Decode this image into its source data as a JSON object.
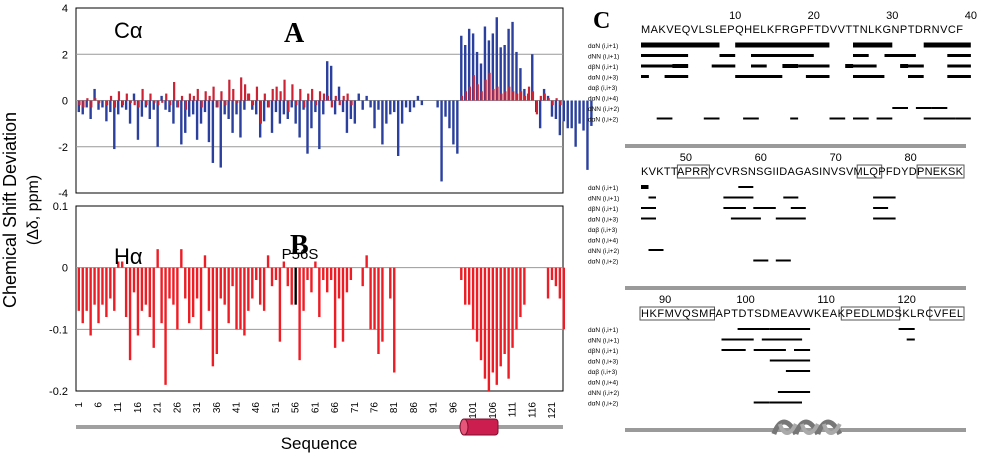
{
  "colors": {
    "calpha_pos": "#cc2233",
    "calpha_neg": "#2a3f9e",
    "halpha": "#ee1c24",
    "p56s_bar": "#000000",
    "helix": "#cc1f4f",
    "grid": "#999999"
  },
  "y_axis_label": "Chemical Shift Deviation",
  "y_axis_units": "(Δδ, ppm)",
  "x_axis_label": "Sequence",
  "x_ticks": [
    "1",
    "6",
    "11",
    "16",
    "21",
    "26",
    "31",
    "36",
    "41",
    "46",
    "51",
    "56",
    "61",
    "66",
    "71",
    "76",
    "81",
    "86",
    "91",
    "96",
    "101",
    "106",
    "111",
    "116",
    "121"
  ],
  "chart_data": [
    {
      "type": "bar",
      "panel_letter": "A",
      "title": "Cα",
      "ylim": [
        -4,
        4
      ],
      "yticks": [
        "4",
        "2",
        "0",
        "-2",
        "-4"
      ],
      "grid": true,
      "x_start": 1,
      "series": [
        {
          "values": [
            -0.5,
            -0.6,
            -0.3,
            -0.8,
            0.5,
            -0.4,
            -0.3,
            -0.9,
            -0.5,
            -2.1,
            -0.6,
            -0.3,
            -0.4,
            -1.0,
            0.3,
            -1.7,
            -0.7,
            -0.3,
            -0.8,
            -0.4,
            -2.0,
            0.2,
            -0.4,
            -0.5,
            -1.0,
            -0.3,
            -1.9,
            -1.4,
            -0.7,
            -0.6,
            -1.7,
            -1.0,
            -0.5,
            -1.8,
            -2.7,
            -0.3,
            -2.9,
            -0.6,
            -0.8,
            -1.4,
            -0.6,
            -1.6,
            -0.4,
            0.3,
            -0.4,
            -0.6,
            -1.6,
            -0.9,
            -0.3,
            -1.4,
            -0.5,
            -1.0,
            -0.6,
            -0.8,
            -0.3,
            -1.0,
            -1.6,
            -0.4,
            -2.3,
            -1.2,
            -0.5,
            -2.1,
            -0.6,
            1.7,
            1.5,
            -0.6,
            0.6,
            -0.5,
            -1.4,
            -0.8,
            -1.0,
            0.3,
            -0.4,
            0.2,
            -0.3,
            -1.2,
            -0.4,
            -1.9,
            -1.0,
            -0.6,
            -0.5,
            -2.4,
            -1.0,
            -0.3,
            -0.5,
            -0.3,
            0.2,
            -0.2,
            0,
            0,
            0,
            -0.3,
            -3.5,
            -0.7,
            -1.2,
            -1.9,
            -2.3,
            2.8,
            2.4,
            3.1,
            2.9,
            2.1,
            1.6,
            3.2,
            2.6,
            2.9,
            3.6,
            2.3,
            2.4,
            3.1,
            3.4,
            2.1,
            1.4,
            0.5,
            0.3,
            2.0,
            -0.5,
            -1.2,
            0.5,
            0.2,
            -0.7,
            -0.8,
            -1.5,
            -0.9,
            -1.2,
            -1.2,
            -2.0,
            -1.0,
            -1.3,
            -3.0,
            -1.1
          ]
        },
        {
          "values": [
            -0.2,
            -0.3,
            0.1,
            -0.3,
            0.1,
            -0.1,
            0,
            -0.2,
            0.2,
            -0.3,
            0.4,
            -0.2,
            0.3,
            -0.1,
            -0.2,
            -0.3,
            0.5,
            -0.2,
            0.3,
            -0.1,
            -0.2,
            -0.1,
            0.3,
            -0.2,
            0.8,
            -0.3,
            0.2,
            -0.4,
            0.3,
            0.2,
            0.5,
            -0.3,
            0.4,
            0.2,
            0.6,
            -0.3,
            0.4,
            -0.2,
            0.9,
            0.5,
            -0.1,
            1.0,
            0.7,
            0.3,
            -0.2,
            0.6,
            -1.0,
            0.3,
            -0.3,
            0.5,
            0.6,
            0.4,
            0.9,
            -0.5,
            0.7,
            -0.2,
            0.5,
            -0.3,
            0.3,
            0.5,
            -0.2,
            0.4,
            0.3,
            0.2,
            -0.3,
            0.2,
            -0.2,
            0.2,
            0.3,
            -0.2,
            0,
            0,
            0,
            0,
            0,
            0,
            0,
            0,
            0,
            0,
            0,
            0,
            0,
            0,
            0,
            0,
            0,
            0,
            0,
            0,
            0,
            0,
            0,
            0,
            0,
            0,
            0,
            0.2,
            0.4,
            0.6,
            1.1,
            0.7,
            0.4,
            0.9,
            1.2,
            0.5,
            0.6,
            0.3,
            0.4,
            0.6,
            0.4,
            0.3,
            0.4,
            0.2,
            0.6,
            0.4,
            -0.6,
            0.2,
            0.3,
            0.1,
            -0.2,
            0.1,
            -0.2,
            0,
            0,
            0,
            0,
            0,
            0
          ]
        }
      ]
    },
    {
      "type": "bar",
      "panel_letter": "B",
      "title": "Hα",
      "ylim": [
        -0.2,
        0.1
      ],
      "yticks": [
        "0.1",
        "0",
        "-0.1",
        "-0.2"
      ],
      "grid": true,
      "annotation": "P56S",
      "x_start": 1,
      "series": [
        {
          "values": [
            -0.07,
            -0.09,
            -0.07,
            -0.11,
            -0.06,
            -0.09,
            -0.06,
            -0.08,
            -0.05,
            -0.07,
            0.01,
            0.01,
            -0.08,
            -0.15,
            -0.04,
            -0.11,
            -0.07,
            -0.06,
            -0.08,
            -0.13,
            0.03,
            -0.09,
            -0.19,
            -0.05,
            -0.06,
            -0.1,
            0.03,
            -0.05,
            -0.09,
            -0.08,
            -0.05,
            -0.1,
            0.02,
            -0.07,
            -0.16,
            -0.14,
            -0.05,
            -0.06,
            -0.09,
            -0.03,
            -0.1,
            -0.1,
            -0.11,
            -0.07,
            -0.05,
            -0.02,
            -0.06,
            -0.07,
            0.02,
            -0.03,
            -0.02,
            -0.12,
            0.01,
            -0.03,
            -0.06,
            -0.06,
            -0.15,
            -0.07,
            -0.02,
            -0.04,
            0.01,
            -0.08,
            -0.02,
            -0.04,
            -0.02,
            -0.13,
            -0.05,
            -0.12,
            -0.04,
            -0.02,
            0.0,
            0.0,
            -0.03,
            0.02,
            -0.1,
            -0.1,
            -0.14,
            -0.12,
            0.0,
            -0.05,
            -0.17,
            0.0,
            0.0,
            0.0,
            0.0,
            0.0,
            0.0,
            0.0,
            0.0,
            0.0,
            0.0,
            0.0,
            0.0,
            0.0,
            0.0,
            0.0,
            0.0,
            -0.02,
            -0.06,
            -0.06,
            -0.1,
            -0.12,
            -0.15,
            -0.18,
            -0.2,
            -0.17,
            -0.19,
            -0.16,
            -0.14,
            -0.18,
            -0.13,
            -0.1,
            -0.08,
            -0.06,
            0.0,
            0.0,
            0.0,
            0.0,
            0.0,
            -0.05,
            -0.02,
            -0.03,
            -0.05,
            -0.1
          ]
        }
      ]
    }
  ],
  "nmr": {
    "panel_letter": "C",
    "blocks": [
      {
        "numbers": [
          {
            "label": "10",
            "pos": 12
          },
          {
            "label": "20",
            "pos": 22
          },
          {
            "label": "30",
            "pos": 32
          },
          {
            "label": "40",
            "pos": 42
          }
        ],
        "sequence": "MAKVEQVLSLEPQHELKFRGPFTDVVTTNLKGNPTDRNVCF",
        "boxes": [],
        "row_labels": [
          "dαN (i,i+1)",
          "dNN (i,i+1)",
          "dβN (i,i+1)",
          "dαN (i,i+3)",
          "dαβ (i,i+3)",
          "dαN (i,i+4)",
          "dNN (i,i+2)",
          "dαN (i,i+2)"
        ],
        "bars": [
          [
            0,
            0,
            10,
            5
          ],
          [
            12,
            0,
            24,
            5
          ],
          [
            27,
            0,
            32,
            5
          ],
          [
            36,
            0,
            42,
            5
          ],
          [
            0,
            1,
            6,
            3
          ],
          [
            10,
            1,
            12,
            3
          ],
          [
            14,
            1,
            22,
            3
          ],
          [
            27,
            1,
            29,
            3
          ],
          [
            31,
            1,
            35,
            3
          ],
          [
            39,
            1,
            42,
            3
          ],
          [
            0,
            2,
            6,
            3
          ],
          [
            9,
            2,
            12,
            3
          ],
          [
            14,
            2,
            16,
            3
          ],
          [
            20,
            2,
            24,
            3
          ],
          [
            27,
            2,
            30,
            3
          ],
          [
            33,
            2,
            36,
            3
          ],
          [
            39,
            2,
            42,
            3
          ],
          [
            4,
            2,
            6,
            4
          ],
          [
            18,
            2,
            20,
            4
          ],
          [
            26,
            2,
            27,
            4
          ],
          [
            33,
            2,
            34,
            4
          ],
          [
            0,
            3,
            1,
            3
          ],
          [
            3,
            3,
            6,
            3
          ],
          [
            12,
            3,
            18,
            3
          ],
          [
            21,
            3,
            24,
            3
          ],
          [
            27,
            3,
            31,
            3
          ],
          [
            34,
            3,
            36,
            3
          ],
          [
            39,
            3,
            42,
            3
          ],
          [
            32,
            6,
            34,
            2
          ],
          [
            35,
            6,
            37,
            2
          ],
          [
            37,
            6,
            39,
            2
          ],
          [
            2,
            7,
            4,
            2
          ],
          [
            8,
            7,
            10,
            2
          ],
          [
            13,
            7,
            15,
            2
          ],
          [
            19,
            7,
            20,
            2
          ],
          [
            24,
            7,
            26,
            2
          ],
          [
            27,
            7,
            29,
            2
          ],
          [
            30,
            7,
            32,
            2
          ],
          [
            36,
            7,
            39,
            2
          ],
          [
            38,
            7,
            40,
            2
          ],
          [
            40,
            7,
            42,
            2
          ]
        ]
      },
      {
        "numbers": [
          {
            "label": "50",
            "pos": 6
          },
          {
            "label": "60",
            "pos": 16
          },
          {
            "label": "70",
            "pos": 26
          },
          {
            "label": "80",
            "pos": 36
          }
        ],
        "sequence": "KVKTTAPRRYCVRSNSGIIDAGASINVSVMLQPFDYDPNEKSK",
        "boxes": [
          {
            "start": 5,
            "end": 9
          },
          {
            "start": 29,
            "end": 32
          },
          {
            "start": 37,
            "end": 43
          }
        ],
        "row_labels": [
          "dαN (i,i+1)",
          "dNN (i,i+1)",
          "dβN (i,i+1)",
          "dαN (i,i+3)",
          "dαβ (i,i+3)",
          "dαN (i,i+4)",
          "dNN (i,i+2)",
          "dαN (i,i+2)"
        ],
        "bars": [
          [
            0,
            0,
            1,
            4
          ],
          [
            13,
            0,
            15,
            2
          ],
          [
            1,
            1,
            2,
            2
          ],
          [
            11,
            1,
            15,
            2
          ],
          [
            19,
            1,
            21,
            2
          ],
          [
            31,
            1,
            34,
            2
          ],
          [
            0,
            2,
            2,
            2
          ],
          [
            11,
            2,
            14,
            2
          ],
          [
            15,
            2,
            18,
            2
          ],
          [
            20,
            2,
            22,
            2
          ],
          [
            31,
            2,
            33,
            2
          ],
          [
            0,
            3,
            2,
            2
          ],
          [
            12,
            3,
            16,
            2
          ],
          [
            18,
            3,
            22,
            2
          ],
          [
            31,
            3,
            34,
            2
          ],
          [
            1,
            6,
            3,
            2
          ],
          [
            15,
            7,
            17,
            2
          ],
          [
            18,
            7,
            20,
            2
          ]
        ]
      },
      {
        "numbers": [
          {
            "label": "90",
            "pos": 3
          },
          {
            "label": "100",
            "pos": 13
          },
          {
            "label": "110",
            "pos": 23
          },
          {
            "label": "120",
            "pos": 33
          }
        ],
        "sequence": "HKFMVQSMFAPTDTSDMEAVWKEAKPEDLMDSKLRCVFEL",
        "boxes": [
          {
            "start": 0,
            "end": 9
          },
          {
            "start": 25,
            "end": 32
          },
          {
            "start": 36,
            "end": 40
          }
        ],
        "row_labels": [
          "dαN (i,i+1)",
          "dNN (i,i+1)",
          "dβN (i,i+1)",
          "dαN (i,i+3)",
          "dαβ (i,i+3)",
          "dαN (i,i+4)",
          "dNN (i,i+2)",
          "dαN (i,i+2)"
        ],
        "bars": [
          [
            12,
            0,
            16,
            2
          ],
          [
            16,
            0,
            21,
            2
          ],
          [
            32,
            0,
            34,
            2
          ],
          [
            10,
            1,
            14,
            2
          ],
          [
            15,
            1,
            20,
            2
          ],
          [
            33,
            1,
            34,
            2
          ],
          [
            10,
            2,
            13,
            2
          ],
          [
            14,
            2,
            18,
            2
          ],
          [
            19,
            2,
            21,
            2
          ],
          [
            16,
            3,
            21,
            2
          ],
          [
            18,
            4,
            21,
            2
          ],
          [
            17,
            6,
            19,
            2
          ],
          [
            19,
            6,
            21,
            2
          ],
          [
            14,
            7,
            16,
            2
          ],
          [
            16,
            7,
            20,
            2
          ]
        ]
      }
    ]
  }
}
